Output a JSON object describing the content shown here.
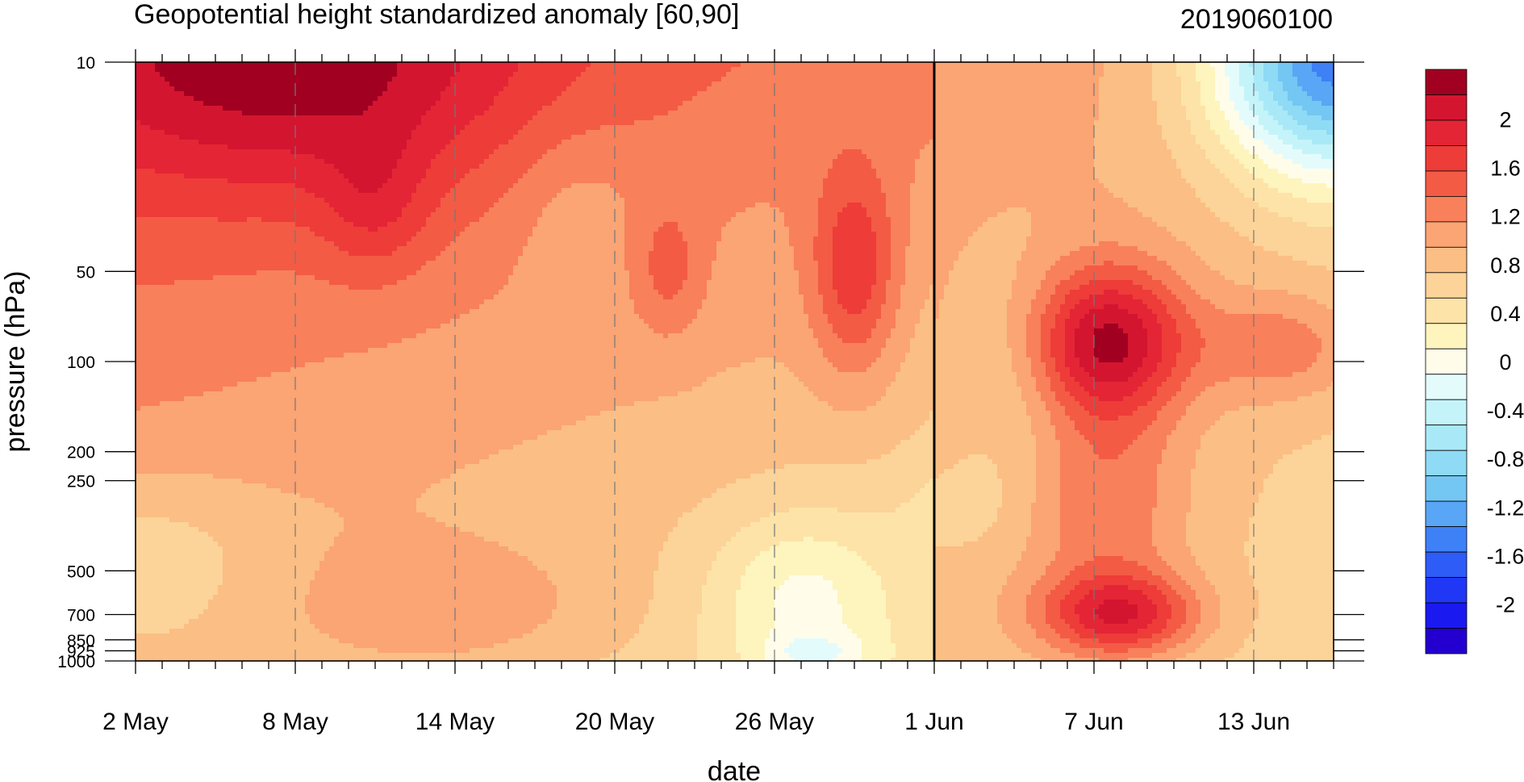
{
  "chart_data": {
    "type": "heatmap",
    "title": "Geopotential height standardized anomaly [60,90]",
    "date_label": "2019060100",
    "xlabel": "date",
    "ylabel": "pressure (hPa)",
    "x_ticks": [
      {
        "day": 0,
        "label": "2 May"
      },
      {
        "day": 6,
        "label": "8 May"
      },
      {
        "day": 12,
        "label": "14 May"
      },
      {
        "day": 18,
        "label": "20 May"
      },
      {
        "day": 24,
        "label": "26 May"
      },
      {
        "day": 30,
        "label": "1 Jun"
      },
      {
        "day": 36,
        "label": "7 Jun"
      },
      {
        "day": 42,
        "label": "13 Jun"
      }
    ],
    "x_range_days": [
      0,
      45
    ],
    "reference_line_day": 30,
    "y_scale": "log",
    "y_range": [
      1000,
      10
    ],
    "y_ticks": [
      {
        "value": 10,
        "label": "10"
      },
      {
        "value": 50,
        "label": "50"
      },
      {
        "value": 100,
        "label": "100"
      },
      {
        "value": 200,
        "label": "200"
      },
      {
        "value": 250,
        "label": "250"
      },
      {
        "value": 500,
        "label": "500"
      },
      {
        "value": 700,
        "label": "700"
      },
      {
        "value": 850,
        "label": "850"
      },
      {
        "value": 925,
        "label": "925"
      },
      {
        "value": 1000,
        "label": "1000"
      }
    ],
    "colorbar": {
      "levels": [
        -2.2,
        -2,
        -1.8,
        -1.6,
        -1.4,
        -1.2,
        -1,
        -0.8,
        -0.6,
        -0.4,
        -0.2,
        0,
        0.2,
        0.4,
        0.6,
        0.8,
        1,
        1.2,
        1.4,
        1.6,
        1.8,
        2,
        2.2
      ],
      "colors": [
        "#2300cf",
        "#1a1af0",
        "#2038f5",
        "#2e5cf7",
        "#3e80f6",
        "#58a6f5",
        "#74c6f3",
        "#8fdaf5",
        "#a9e9f7",
        "#c4f4f9",
        "#e4fbfc",
        "#fffde9",
        "#fef4bd",
        "#fde3a7",
        "#fcd398",
        "#fbbe84",
        "#fba474",
        "#f8805a",
        "#f35b45",
        "#ee3c38",
        "#e42535",
        "#d41530",
        "#a10021"
      ],
      "labels": [
        {
          "value": 2,
          "label": "2"
        },
        {
          "value": 1.6,
          "label": "1.6"
        },
        {
          "value": 1.2,
          "label": "1.2"
        },
        {
          "value": 0.8,
          "label": "0.8"
        },
        {
          "value": 0.4,
          "label": "0.4"
        },
        {
          "value": 0,
          "label": "0"
        },
        {
          "value": -0.4,
          "label": "-0.4"
        },
        {
          "value": -0.8,
          "label": "-0.8"
        },
        {
          "value": -1.2,
          "label": "-1.2"
        },
        {
          "value": -1.6,
          "label": "-1.6"
        },
        {
          "value": -2,
          "label": "-2"
        }
      ]
    },
    "blobs": [
      {
        "x": 12,
        "p": 700,
        "v": 0.3,
        "sx": 7,
        "sy": 0.25
      },
      {
        "x": 0,
        "p": 450,
        "v": -0.35,
        "sx": 5,
        "sy": 0.28
      },
      {
        "x": 25,
        "p": 600,
        "v": -0.55,
        "sx": 3.5,
        "sy": 0.28
      },
      {
        "x": 25.5,
        "p": 950,
        "v": -0.4,
        "sx": 2,
        "sy": 0.07
      },
      {
        "x": 31,
        "p": 300,
        "v": -0.2,
        "sx": 2.5,
        "sy": 0.18
      },
      {
        "x": 6,
        "p": 10,
        "v": 0.8,
        "sx": 9,
        "sy": 0.45
      },
      {
        "x": 16.5,
        "p": 30,
        "v": -0.2,
        "sx": 2.5,
        "sy": 0.3
      },
      {
        "x": 27,
        "p": 50,
        "v": 0.7,
        "sx": 1.6,
        "sy": 0.35
      },
      {
        "x": 36.5,
        "p": 85,
        "v": 1.3,
        "sx": 3,
        "sy": 0.25
      },
      {
        "x": 37,
        "p": 700,
        "v": 1.05,
        "sx": 3,
        "sy": 0.14
      },
      {
        "x": 36.5,
        "p": 300,
        "v": 0.5,
        "sx": 3,
        "sy": 0.4
      },
      {
        "x": 43,
        "p": 90,
        "v": 0.5,
        "sx": 3,
        "sy": 0.18
      },
      {
        "x": 45,
        "p": 10,
        "v": -2.2,
        "sx": 4.5,
        "sy": 0.38
      },
      {
        "x": 33,
        "p": 100,
        "v": -0.3,
        "sx": 2.5,
        "sy": 0.4
      },
      {
        "x": 20,
        "p": 50,
        "v": 0.35,
        "sx": 1.3,
        "sy": 0.22
      },
      {
        "x": 9,
        "p": 30,
        "v": 0.35,
        "sx": 2,
        "sy": 0.25
      }
    ]
  }
}
